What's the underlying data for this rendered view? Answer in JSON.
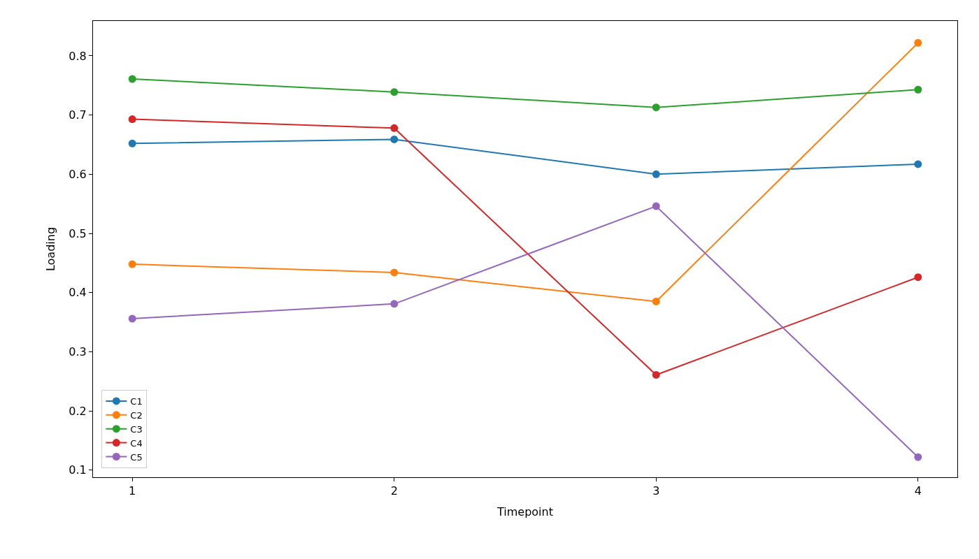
{
  "chart_data": {
    "type": "line",
    "xlabel": "Timepoint",
    "ylabel": "Loading",
    "x": [
      1,
      2,
      3,
      4
    ],
    "series": [
      {
        "name": "C1",
        "color": "#1f77b4",
        "values": [
          0.652,
          0.659,
          0.6,
          0.617
        ]
      },
      {
        "name": "C2",
        "color": "#ff7f0e",
        "values": [
          0.448,
          0.434,
          0.385,
          0.822
        ]
      },
      {
        "name": "C3",
        "color": "#2ca02c",
        "values": [
          0.761,
          0.739,
          0.713,
          0.743
        ]
      },
      {
        "name": "C4",
        "color": "#d62728",
        "values": [
          0.693,
          0.678,
          0.261,
          0.426
        ]
      },
      {
        "name": "C5",
        "color": "#9467bd",
        "values": [
          0.356,
          0.381,
          0.546,
          0.122
        ]
      }
    ],
    "xlim": [
      0.85,
      4.15
    ],
    "xticks": [
      1,
      2,
      3,
      4
    ],
    "ylim": [
      0.088,
      0.859
    ],
    "yticks": [
      0.1,
      0.2,
      0.3,
      0.4,
      0.5,
      0.6,
      0.7,
      0.8
    ],
    "legend": "bottom left",
    "marker": "circle",
    "line_style": "solid"
  }
}
